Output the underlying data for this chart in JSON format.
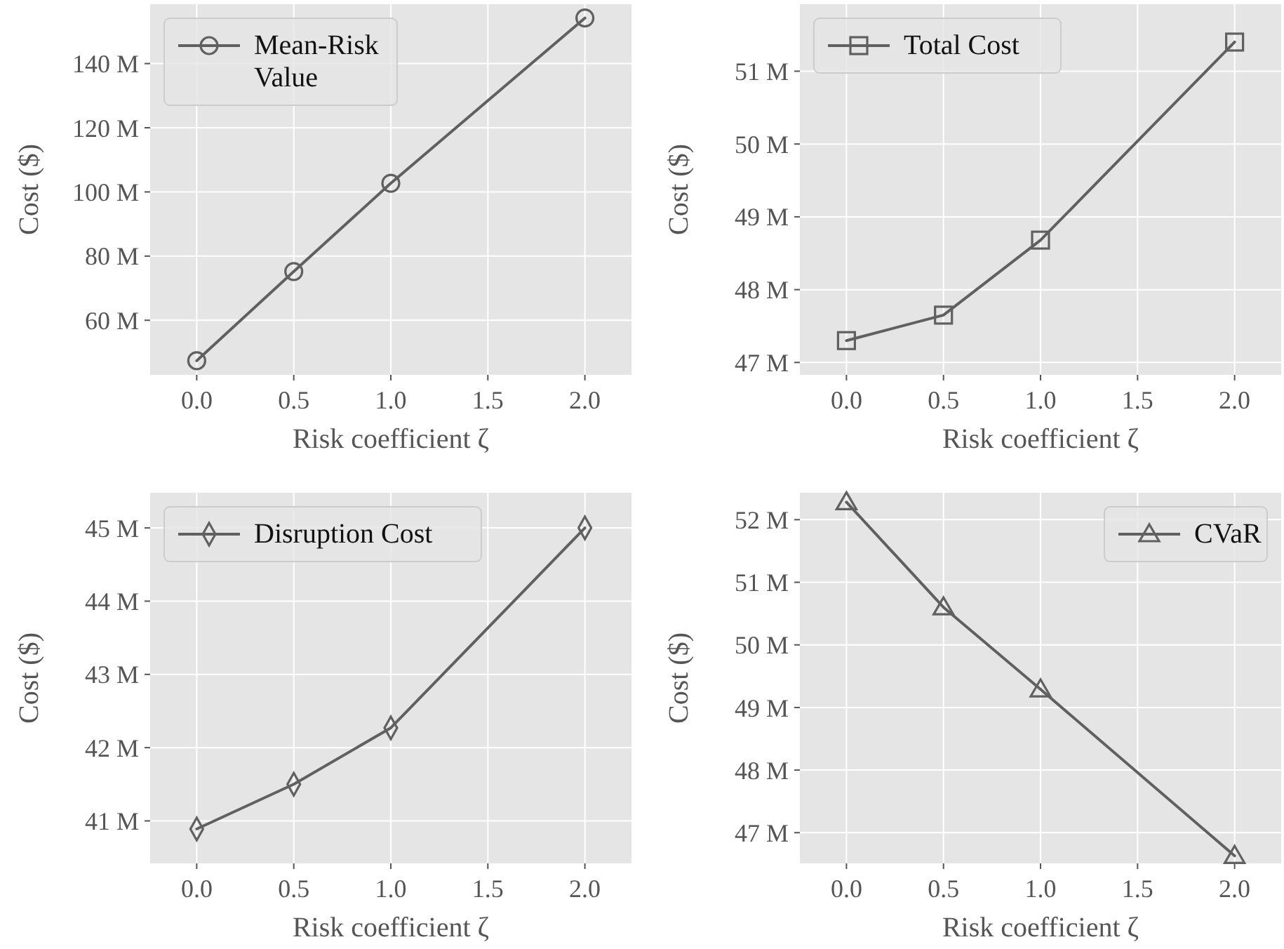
{
  "chart_data": [
    {
      "type": "line",
      "xlabel": "Risk coefficient ζ",
      "ylabel": "Cost ($)",
      "x": [
        0,
        0.5,
        1,
        2
      ],
      "xlim": [
        -0.24,
        2.24
      ],
      "xticks": [
        {
          "value": 0,
          "label": "0.0"
        },
        {
          "value": 0.5,
          "label": "0.5"
        },
        {
          "value": 1,
          "label": "1.0"
        },
        {
          "value": 1.5,
          "label": "1.5"
        },
        {
          "value": 2,
          "label": "2.0"
        }
      ],
      "ylim": [
        43,
        158.5
      ],
      "yticks": [
        {
          "value": 60,
          "label": "60 M"
        },
        {
          "value": 80,
          "label": "80 M"
        },
        {
          "value": 100,
          "label": "100 M"
        },
        {
          "value": 120,
          "label": "120 M"
        },
        {
          "value": 140,
          "label": "140 M"
        }
      ],
      "grid": true,
      "legend": "top left",
      "marker": "circle",
      "line_style": "solid",
      "series": [
        {
          "name": "Mean-Risk\nValue",
          "color": "#606060",
          "values": [
            47.4,
            75.2,
            102.7,
            154.2
          ]
        }
      ]
    },
    {
      "type": "line",
      "xlabel": "Risk coefficient ζ",
      "ylabel": "Cost ($)",
      "x": [
        0,
        0.5,
        1,
        2
      ],
      "xlim": [
        -0.24,
        2.24
      ],
      "xticks": [
        {
          "value": 0,
          "label": "0.0"
        },
        {
          "value": 0.5,
          "label": "0.5"
        },
        {
          "value": 1,
          "label": "1.0"
        },
        {
          "value": 1.5,
          "label": "1.5"
        },
        {
          "value": 2,
          "label": "2.0"
        }
      ],
      "ylim": [
        46.83,
        51.92
      ],
      "yticks": [
        {
          "value": 47,
          "label": "47 M"
        },
        {
          "value": 48,
          "label": "48 M"
        },
        {
          "value": 49,
          "label": "49 M"
        },
        {
          "value": 50,
          "label": "50 M"
        },
        {
          "value": 51,
          "label": "51 M"
        }
      ],
      "grid": true,
      "legend": "top left",
      "marker": "square",
      "line_style": "solid",
      "series": [
        {
          "name": "Total Cost",
          "color": "#606060",
          "values": [
            47.3,
            47.65,
            48.68,
            51.4
          ]
        }
      ]
    },
    {
      "type": "line",
      "xlabel": "Risk coefficient ζ",
      "ylabel": "Cost ($)",
      "x": [
        0,
        0.5,
        1,
        2
      ],
      "xlim": [
        -0.24,
        2.24
      ],
      "xticks": [
        {
          "value": 0,
          "label": "0.0"
        },
        {
          "value": 0.5,
          "label": "0.5"
        },
        {
          "value": 1,
          "label": "1.0"
        },
        {
          "value": 1.5,
          "label": "1.5"
        },
        {
          "value": 2,
          "label": "2.0"
        }
      ],
      "ylim": [
        40.42,
        45.48
      ],
      "yticks": [
        {
          "value": 41,
          "label": "41 M"
        },
        {
          "value": 42,
          "label": "42 M"
        },
        {
          "value": 43,
          "label": "43 M"
        },
        {
          "value": 44,
          "label": "44 M"
        },
        {
          "value": 45,
          "label": "45 M"
        }
      ],
      "grid": true,
      "legend": "top left",
      "marker": "diamond",
      "line_style": "solid",
      "series": [
        {
          "name": "Disruption Cost",
          "color": "#606060",
          "values": [
            40.89,
            41.5,
            42.27,
            45.0
          ]
        }
      ]
    },
    {
      "type": "line",
      "xlabel": "Risk coefficient ζ",
      "ylabel": "Cost ($)",
      "x": [
        0,
        0.5,
        1,
        2
      ],
      "xlim": [
        -0.24,
        2.24
      ],
      "xticks": [
        {
          "value": 0,
          "label": "0.0"
        },
        {
          "value": 0.5,
          "label": "0.5"
        },
        {
          "value": 1,
          "label": "1.0"
        },
        {
          "value": 1.5,
          "label": "1.5"
        },
        {
          "value": 2,
          "label": "2.0"
        }
      ],
      "ylim": [
        46.51,
        52.43
      ],
      "yticks": [
        {
          "value": 47,
          "label": "47 M"
        },
        {
          "value": 48,
          "label": "48 M"
        },
        {
          "value": 49,
          "label": "49 M"
        },
        {
          "value": 50,
          "label": "50 M"
        },
        {
          "value": 51,
          "label": "51 M"
        },
        {
          "value": 52,
          "label": "52 M"
        }
      ],
      "grid": true,
      "legend": "top right",
      "marker": "triangle",
      "line_style": "solid",
      "series": [
        {
          "name": "CVaR",
          "color": "#606060",
          "values": [
            52.28,
            50.6,
            49.29,
            46.63
          ]
        }
      ]
    }
  ]
}
